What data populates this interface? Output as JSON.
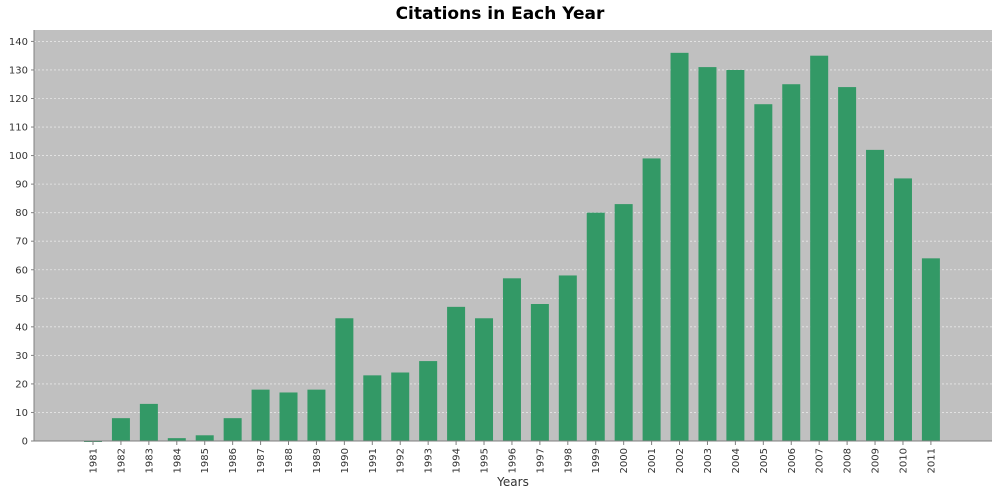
{
  "chart_data": {
    "type": "bar",
    "title": "Citations in Each Year",
    "xlabel": "Years",
    "ylabel": "",
    "categories": [
      "1981",
      "1982",
      "1983",
      "1984",
      "1985",
      "1986",
      "1987",
      "1988",
      "1989",
      "1990",
      "1991",
      "1992",
      "1993",
      "1994",
      "1995",
      "1996",
      "1997",
      "1998",
      "1999",
      "2000",
      "2001",
      "2002",
      "2003",
      "2004",
      "2005",
      "2006",
      "2007",
      "2008",
      "2009",
      "2010",
      "2011"
    ],
    "values": [
      0,
      8,
      13,
      1,
      2,
      8,
      18,
      17,
      18,
      43,
      23,
      24,
      28,
      47,
      43,
      57,
      48,
      58,
      80,
      83,
      99,
      136,
      131,
      130,
      118,
      125,
      135,
      124,
      102,
      92,
      64
    ],
    "ylim": [
      0,
      144
    ],
    "yticks": [
      0,
      10,
      20,
      30,
      40,
      50,
      60,
      70,
      80,
      90,
      100,
      110,
      120,
      130,
      140
    ],
    "grid": true,
    "colors": {
      "bar": "#339966",
      "plot_background": "#c0c0c0",
      "gridline": "#e6e6e6"
    }
  }
}
